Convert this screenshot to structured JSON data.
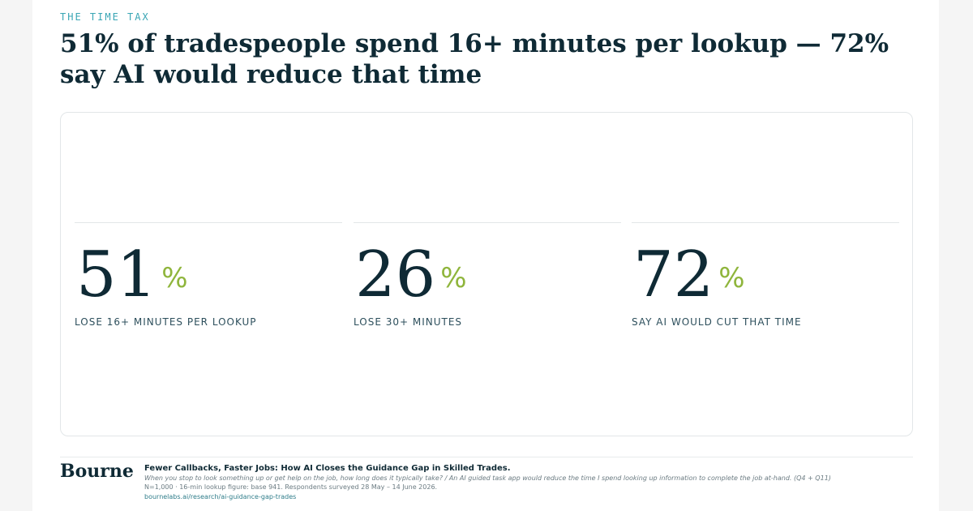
{
  "eyebrow": "THE TIME TAX",
  "headline": "51% of tradespeople spend 16+ minutes per lookup — 72% say AI would reduce that time",
  "stats": [
    {
      "value": "51",
      "unit": "%",
      "label": "LOSE 16+ MINUTES PER LOOKUP"
    },
    {
      "value": "26",
      "unit": "%",
      "label": "LOSE 30+ MINUTES"
    },
    {
      "value": "72",
      "unit": "%",
      "label": "SAY AI WOULD CUT THAT TIME"
    }
  ],
  "colors": {
    "accent_eyebrow": "#3aa6b5",
    "accent_percent": "#8fb53c",
    "text_primary": "#0f2a35"
  },
  "footer": {
    "brand": "Bourne",
    "title": "Fewer Callbacks, Faster Jobs: How AI Closes the Guidance Gap in Skilled Trades.",
    "question": "When you stop to look something up or get help on the job, how long does it typically take? / An AI guided task app would reduce the time I spend looking up information to complete the job at-hand. (Q4 + Q11)",
    "method": "N=1,000 · 16-min lookup figure: base 941. Respondents surveyed 28 May – 14 June 2026.",
    "link": "bournelabs.ai/research/ai-guidance-gap-trades"
  }
}
